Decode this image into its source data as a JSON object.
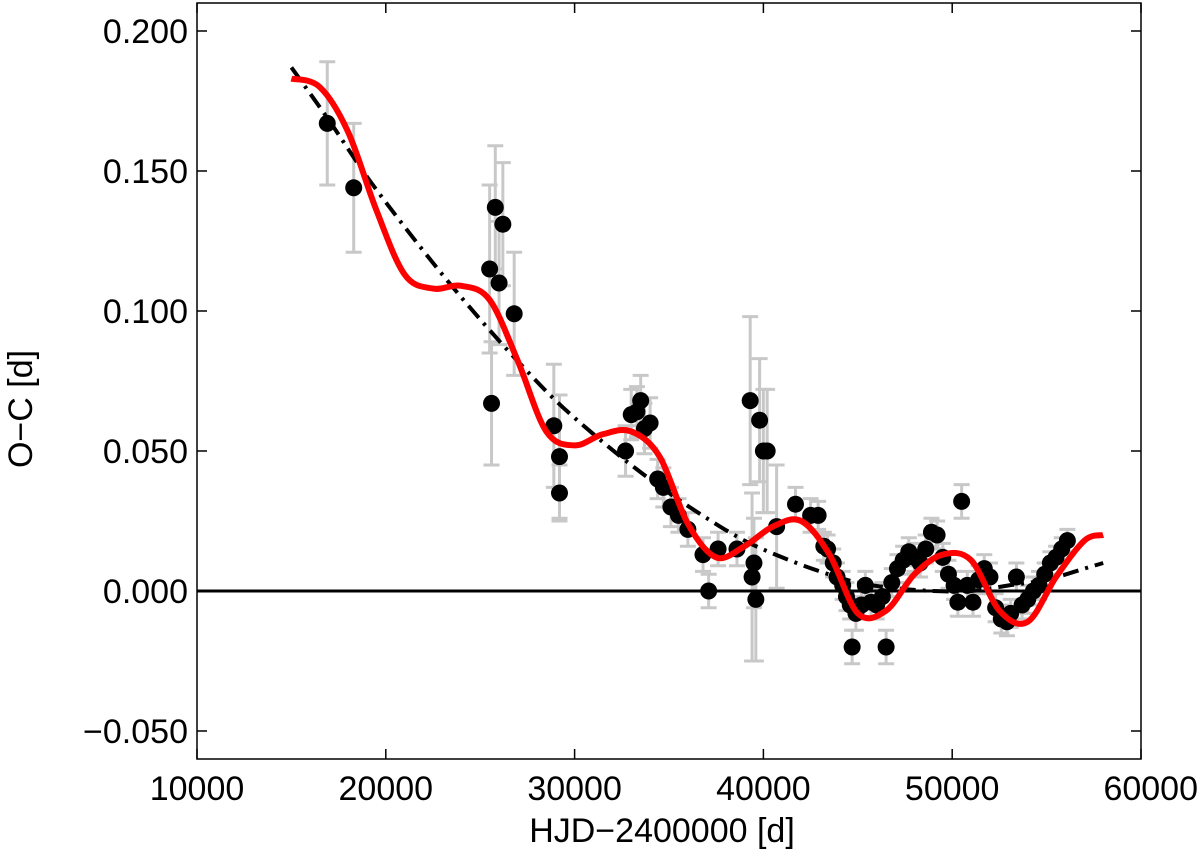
{
  "chart_data": {
    "type": "scatter",
    "title": "",
    "xlabel": "HJD−2400000 [d]",
    "ylabel": "O−C [d]",
    "xlim": [
      10000,
      60000
    ],
    "ylim": [
      -0.06,
      0.21
    ],
    "xticks": [
      10000,
      20000,
      30000,
      40000,
      50000,
      60000
    ],
    "xtick_labels": [
      "10000",
      "20000",
      "30000",
      "40000",
      "50000",
      "60000"
    ],
    "yticks": [
      -0.05,
      0.0,
      0.05,
      0.1,
      0.15,
      0.2
    ],
    "ytick_labels": [
      "−0.050",
      "0.000",
      "0.050",
      "0.100",
      "0.150",
      "0.200"
    ],
    "grid": false,
    "legend": "none",
    "colors": {
      "points": "#000000",
      "error_bars": "#c8c8c8",
      "fit": "#ff0000",
      "trend": "#000000",
      "zero_line": "#000000"
    },
    "series": [
      {
        "type": "scatter",
        "marker": "filled-circle",
        "x": [
          16900,
          18300,
          25500,
          25600,
          25800,
          26000,
          26200,
          26800,
          28900,
          29200,
          29200,
          32700,
          33000,
          33300,
          33500,
          33700,
          34000,
          34400,
          34700,
          35100,
          35500,
          36000,
          36800,
          37100,
          37600,
          38600,
          39300,
          39400,
          39500,
          39600,
          39800,
          40000,
          40200,
          40700,
          41700,
          42500,
          42900,
          43200,
          43400,
          43700,
          43900,
          44200,
          44400,
          44600,
          44700,
          44900,
          45200,
          45400,
          45700,
          46000,
          46300,
          46500,
          46800,
          47100,
          47400,
          47700,
          48000,
          48300,
          48600,
          48900,
          49200,
          49500,
          49800,
          50100,
          50300,
          50500,
          50800,
          51100,
          51400,
          51700,
          52000,
          52300,
          52600,
          52900,
          53100,
          53400,
          53700,
          54000,
          54300,
          54600,
          54900,
          55200,
          55500,
          55800,
          56100
        ],
        "y": [
          0.167,
          0.144,
          0.115,
          0.067,
          0.137,
          0.11,
          0.131,
          0.099,
          0.059,
          0.048,
          0.035,
          0.05,
          0.063,
          0.064,
          0.068,
          0.058,
          0.06,
          0.04,
          0.037,
          0.03,
          0.027,
          0.022,
          0.013,
          0.0,
          0.015,
          0.015,
          0.068,
          0.005,
          0.01,
          -0.003,
          0.061,
          0.05,
          0.05,
          0.023,
          0.031,
          0.027,
          0.027,
          0.016,
          0.015,
          0.01,
          0.005,
          0.002,
          -0.002,
          -0.005,
          -0.02,
          -0.008,
          -0.005,
          0.002,
          -0.004,
          -0.005,
          -0.002,
          -0.02,
          0.003,
          0.008,
          0.011,
          0.014,
          0.012,
          0.01,
          0.015,
          0.021,
          0.02,
          0.012,
          0.006,
          0.002,
          -0.004,
          0.032,
          0.002,
          -0.004,
          0.004,
          0.008,
          0.005,
          -0.006,
          -0.01,
          -0.011,
          -0.008,
          0.005,
          -0.005,
          -0.003,
          0.0,
          0.002,
          0.006,
          0.01,
          0.012,
          0.015,
          0.018
        ],
        "yerr": [
          0.022,
          0.023,
          0.03,
          0.022,
          0.022,
          0.022,
          0.022,
          0.022,
          0.022,
          0.022,
          0.01,
          0.009,
          0.009,
          0.009,
          0.009,
          0.009,
          0.009,
          0.007,
          0.007,
          0.007,
          0.006,
          0.006,
          0.006,
          0.006,
          0.006,
          0.006,
          0.03,
          0.03,
          0.016,
          0.022,
          0.022,
          0.022,
          0.022,
          0.022,
          0.006,
          0.006,
          0.005,
          0.005,
          0.005,
          0.005,
          0.005,
          0.005,
          0.005,
          0.005,
          0.006,
          0.006,
          0.005,
          0.005,
          0.005,
          0.005,
          0.005,
          0.006,
          0.005,
          0.005,
          0.005,
          0.005,
          0.005,
          0.005,
          0.005,
          0.005,
          0.005,
          0.005,
          0.005,
          0.005,
          0.005,
          0.006,
          0.005,
          0.005,
          0.005,
          0.005,
          0.005,
          0.005,
          0.005,
          0.005,
          0.005,
          0.005,
          0.005,
          0.005,
          0.005,
          0.005,
          0.004,
          0.004,
          0.004,
          0.004,
          0.004
        ]
      },
      {
        "type": "line",
        "style": "solid",
        "x": [
          15000,
          16500,
          18000,
          19500,
          21000,
          22500,
          24000,
          25500,
          27000,
          28500,
          30000,
          31500,
          33000,
          34500,
          36000,
          37500,
          39000,
          40500,
          42000,
          43500,
          45000,
          46500,
          48000,
          49500,
          51000,
          52500,
          54000,
          55500,
          57000,
          58000
        ],
        "y": [
          0.183,
          0.18,
          0.164,
          0.136,
          0.113,
          0.108,
          0.109,
          0.104,
          0.082,
          0.057,
          0.052,
          0.056,
          0.057,
          0.048,
          0.024,
          0.012,
          0.016,
          0.023,
          0.025,
          0.013,
          -0.008,
          -0.007,
          0.006,
          0.013,
          0.011,
          -0.007,
          -0.011,
          0.005,
          0.018,
          0.02
        ]
      },
      {
        "type": "line",
        "style": "dashdot",
        "x": [
          15000,
          17000,
          19000,
          21000,
          23000,
          25000,
          27000,
          29000,
          31000,
          33000,
          35000,
          37000,
          39000,
          41000,
          43000,
          45000,
          47000,
          49000,
          51000,
          53000,
          55000,
          57000,
          58000
        ],
        "y": [
          0.187,
          0.168,
          0.148,
          0.13,
          0.113,
          0.097,
          0.082,
          0.068,
          0.056,
          0.045,
          0.035,
          0.026,
          0.018,
          0.012,
          0.007,
          0.003,
          0.001,
          0.0,
          0.0,
          0.002,
          0.004,
          0.008,
          0.01
        ]
      }
    ],
    "reference_line": {
      "y": 0.0,
      "style": "solid"
    }
  }
}
